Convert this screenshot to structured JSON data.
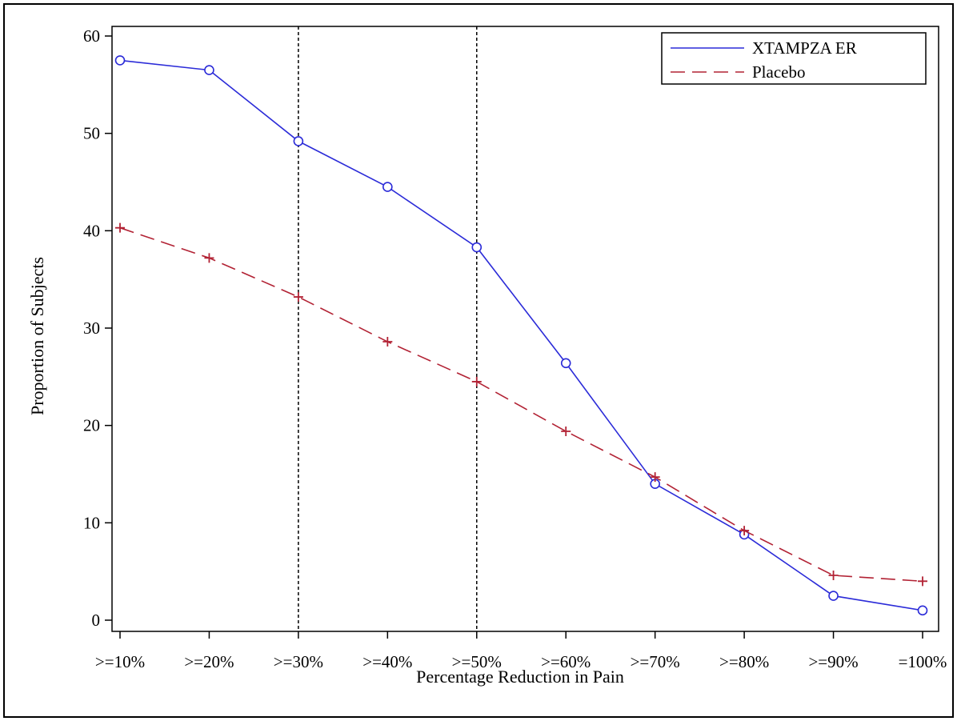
{
  "chart_data": {
    "type": "line",
    "xlabel": "Percentage Reduction in Pain",
    "ylabel": "Proportion of Subjects",
    "categories": [
      ">=10%",
      ">=20%",
      ">=30%",
      ">=40%",
      ">=50%",
      ">=60%",
      ">=70%",
      ">=80%",
      ">=90%",
      "=100%"
    ],
    "ylim": [
      0,
      60
    ],
    "yticks": [
      0,
      10,
      20,
      30,
      40,
      50,
      60
    ],
    "reference_lines_at": [
      ">=30%",
      ">=50%"
    ],
    "legend_position": "top-right",
    "grid": false,
    "series": [
      {
        "name": "XTAMPZA ER",
        "color": "#2b2bd8",
        "line_style": "solid",
        "marker": "circle",
        "values": [
          57.5,
          56.5,
          49.2,
          44.5,
          38.3,
          26.4,
          14.0,
          8.8,
          2.5,
          1.0
        ]
      },
      {
        "name": "Placebo",
        "color": "#b22234",
        "line_style": "dashed",
        "marker": "plus",
        "values": [
          40.3,
          37.2,
          33.2,
          28.6,
          24.5,
          19.4,
          14.7,
          9.2,
          4.6,
          4.0
        ]
      }
    ]
  }
}
